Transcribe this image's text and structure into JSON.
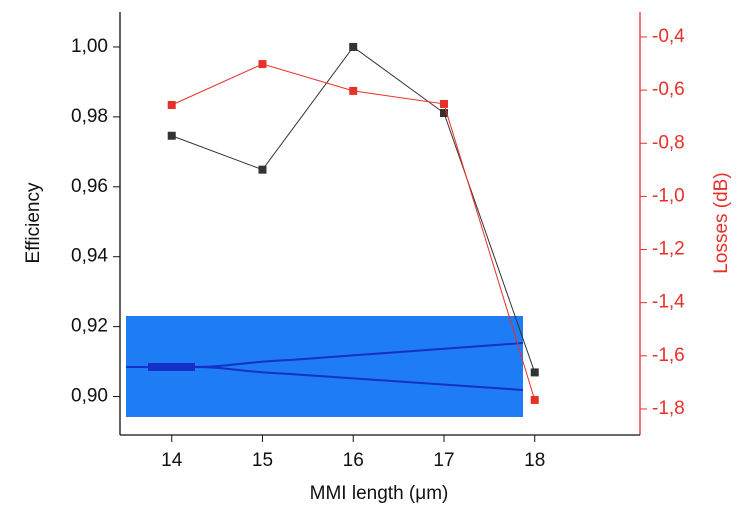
{
  "chart_data": {
    "type": "line",
    "xlabel": "MMI length (μm)",
    "ylabel": "Efficiency",
    "y2label": "Losses (dB)",
    "x": [
      14,
      15,
      16,
      17,
      18
    ],
    "series": [
      {
        "color": "#333333",
        "values": [
          0.9746,
          0.9649,
          1.0,
          0.9811,
          0.9069
        ]
      },
      {
        "color": "#e8302a",
        "axis": "y2",
        "values": [
          -0.656,
          -0.502,
          -0.603,
          -0.652,
          -1.766
        ]
      }
    ],
    "xlim": [
      13.43,
      19.16
    ],
    "xticks": [
      14,
      15,
      16,
      17,
      18
    ],
    "ylim": [
      0.889,
      1.01
    ],
    "yticks": [
      {
        "value": 0.9,
        "label": "0,90"
      },
      {
        "value": 0.92,
        "label": "0,92"
      },
      {
        "value": 0.94,
        "label": "0,94"
      },
      {
        "value": 0.96,
        "label": "0,96"
      },
      {
        "value": 0.98,
        "label": "0,98"
      },
      {
        "value": 1.0,
        "label": "1,00"
      }
    ],
    "y2lim": [
      -1.898,
      -0.306
    ],
    "y2ticks": [
      {
        "value": -1.8,
        "label": "-1,8"
      },
      {
        "value": -1.6,
        "label": "-1,6"
      },
      {
        "value": -1.4,
        "label": "-1,4"
      },
      {
        "value": -1.2,
        "label": "-1,2"
      },
      {
        "value": -1.0,
        "label": "-1,0"
      },
      {
        "value": -0.8,
        "label": "-0,8"
      },
      {
        "value": -0.6,
        "label": "-0,6"
      },
      {
        "value": -0.4,
        "label": "-0,4"
      }
    ]
  }
}
